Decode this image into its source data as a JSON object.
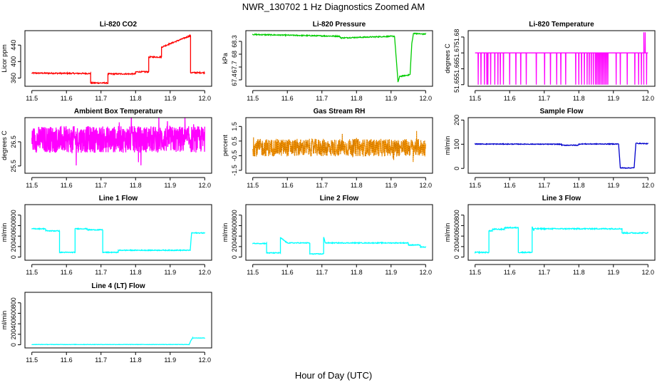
{
  "figure": {
    "title": "NWR_130702  1 Hz Diagnostics Zoomed AM",
    "xlabel": "Hour of Day (UTC)"
  },
  "chart_data": [
    {
      "id": "co2",
      "type": "line",
      "title": "Li-820 CO2",
      "ylabel": "Licor ppm",
      "color": "#ff0000",
      "xlim": [
        11.48,
        12.02
      ],
      "ylim": [
        340,
        475
      ],
      "xticks": [
        11.5,
        11.6,
        11.7,
        11.8,
        11.9,
        12.0
      ],
      "yticks": [
        360,
        400,
        440
      ],
      "x": [
        11.5,
        11.67,
        11.67,
        11.72,
        11.72,
        11.8,
        11.8,
        11.838,
        11.838,
        11.875,
        11.875,
        11.959,
        11.959,
        12.0
      ],
      "y": [
        372,
        371,
        348,
        348,
        370,
        370,
        375,
        375,
        411,
        411,
        435,
        463,
        373,
        373
      ],
      "noise": 1.5
    },
    {
      "id": "pressure",
      "type": "line",
      "title": "Li-820 Pressure",
      "ylabel": "kPa",
      "color": "#00cc00",
      "xlim": [
        11.48,
        12.02
      ],
      "ylim": [
        67.25,
        68.55
      ],
      "xticks": [
        11.5,
        11.6,
        11.7,
        11.8,
        11.9,
        12.0
      ],
      "yticks": [
        67.4,
        67.7,
        68.0,
        68.3
      ],
      "x": [
        11.5,
        11.75,
        11.755,
        11.91,
        11.915,
        11.92,
        11.925,
        11.955,
        11.96,
        11.965,
        11.99,
        12.0
      ],
      "y": [
        68.46,
        68.42,
        68.38,
        68.42,
        67.9,
        67.35,
        67.48,
        67.52,
        68.25,
        68.49,
        68.47,
        68.47
      ],
      "noise": 0.012
    },
    {
      "id": "temperature",
      "type": "line",
      "title": "Li-820 Temperature",
      "ylabel": "degrees C",
      "color": "#ff00ff",
      "xlim": [
        11.48,
        12.02
      ],
      "ylim": [
        51.649,
        51.684
      ],
      "xticks": [
        11.5,
        11.6,
        11.7,
        11.8,
        11.9,
        12.0
      ],
      "yticks": [
        51.65,
        51.66,
        51.67,
        51.68
      ],
      "baseline": 51.67,
      "low": 51.65,
      "spike_x": [
        11.509,
        11.517,
        11.527,
        11.534,
        11.537,
        11.545,
        11.557,
        11.566,
        11.573,
        11.582,
        11.6,
        11.618,
        11.632,
        11.648,
        11.677,
        11.701,
        11.718,
        11.736,
        11.748,
        11.762,
        11.791,
        11.8,
        11.808,
        11.816,
        11.824,
        11.83,
        11.836,
        11.842,
        11.848,
        11.852,
        11.856,
        11.86,
        11.864,
        11.868,
        11.872,
        11.876,
        11.88,
        11.884,
        11.908,
        11.92,
        11.94,
        11.962,
        11.973,
        11.981,
        11.988,
        11.996
      ],
      "high_x": [
        11.988,
        11.992
      ],
      "high": 51.683
    },
    {
      "id": "ambient",
      "type": "line",
      "title": "Ambient Box Temperature",
      "ylabel": "degrees C",
      "color": "#ff00ff",
      "xlim": [
        11.48,
        12.02
      ],
      "ylim": [
        25.2,
        27.5
      ],
      "xticks": [
        11.5,
        11.6,
        11.7,
        11.8,
        11.9,
        12.0
      ],
      "yticks": [
        25.5,
        26.5
      ],
      "center": 26.6,
      "amplitude": 0.55
    },
    {
      "id": "rh",
      "type": "line",
      "title": "Gas Stream RH",
      "ylabel": "percent",
      "color": "#ff9900",
      "xlim": [
        11.48,
        12.02
      ],
      "ylim": [
        -1.7,
        2.1
      ],
      "xticks": [
        11.5,
        11.6,
        11.7,
        11.8,
        11.9,
        12.0
      ],
      "yticks": [
        -1.5,
        -0.5,
        0.5,
        1.5
      ],
      "center": 0.05,
      "amplitude": 0.6
    },
    {
      "id": "sampleflow",
      "type": "line",
      "title": "Sample Flow",
      "ylabel": "ml/min",
      "color": "#0000cc",
      "xlim": [
        11.48,
        12.02
      ],
      "ylim": [
        -20,
        210
      ],
      "xticks": [
        11.5,
        11.6,
        11.7,
        11.8,
        11.9,
        12.0
      ],
      "yticks": [
        0,
        100,
        200
      ],
      "x": [
        11.5,
        11.75,
        11.75,
        11.8,
        11.8,
        11.915,
        11.92,
        11.96,
        11.965,
        12.0
      ],
      "y": [
        101,
        100,
        96,
        96,
        101,
        101,
        2,
        2,
        104,
        102
      ],
      "noise": 1.5
    },
    {
      "id": "line1",
      "type": "line",
      "title": "Line 1 Flow",
      "ylabel": "ml/min",
      "color": "#00ffff",
      "xlim": [
        11.48,
        12.02
      ],
      "ylim": [
        -60,
        1000
      ],
      "xticks": [
        11.5,
        11.6,
        11.7,
        11.8,
        11.9,
        12.0
      ],
      "yticks": [
        0,
        200,
        400,
        600,
        800
      ],
      "x": [
        11.5,
        11.54,
        11.54,
        11.58,
        11.58,
        11.625,
        11.625,
        11.66,
        11.66,
        11.705,
        11.705,
        11.75,
        11.75,
        11.958,
        11.962,
        12.0
      ],
      "y": [
        540,
        540,
        500,
        500,
        90,
        90,
        540,
        540,
        520,
        520,
        90,
        90,
        130,
        130,
        460,
        460
      ],
      "noise": 8
    },
    {
      "id": "line2",
      "type": "line",
      "title": "Line 2 Flow",
      "ylabel": "ml/min",
      "color": "#00ffff",
      "xlim": [
        11.48,
        12.02
      ],
      "ylim": [
        -60,
        1000
      ],
      "xticks": [
        11.5,
        11.6,
        11.7,
        11.8,
        11.9,
        12.0
      ],
      "yticks": [
        0,
        200,
        400,
        600,
        800
      ],
      "x": [
        11.5,
        11.54,
        11.54,
        11.58,
        11.58,
        11.6,
        11.6,
        11.665,
        11.665,
        11.705,
        11.705,
        11.71,
        11.71,
        11.95,
        11.95,
        11.985,
        11.985,
        12.0
      ],
      "y": [
        260,
        260,
        80,
        80,
        370,
        270,
        270,
        270,
        60,
        60,
        380,
        270,
        270,
        270,
        230,
        230,
        190,
        190
      ],
      "noise": 8
    },
    {
      "id": "line3",
      "type": "line",
      "title": "Line 3 Flow",
      "ylabel": "ml/min",
      "color": "#00ffff",
      "xlim": [
        11.48,
        12.02
      ],
      "ylim": [
        -60,
        1000
      ],
      "xticks": [
        11.5,
        11.6,
        11.7,
        11.8,
        11.9,
        12.0
      ],
      "yticks": [
        0,
        200,
        400,
        600,
        800
      ],
      "x": [
        11.5,
        11.54,
        11.54,
        11.55,
        11.55,
        11.585,
        11.585,
        11.625,
        11.625,
        11.665,
        11.665,
        11.67,
        11.67,
        11.925,
        11.925,
        12.0
      ],
      "y": [
        90,
        90,
        500,
        500,
        530,
        530,
        560,
        560,
        90,
        90,
        580,
        500,
        540,
        540,
        460,
        460
      ],
      "noise": 10
    },
    {
      "id": "line4",
      "type": "line",
      "title": "Line 4 (LT) Flow",
      "ylabel": "ml/min",
      "color": "#00ffff",
      "xlim": [
        11.48,
        12.02
      ],
      "ylim": [
        -60,
        1000
      ],
      "xticks": [
        11.5,
        11.6,
        11.7,
        11.8,
        11.9,
        12.0
      ],
      "yticks": [
        0,
        200,
        400,
        600,
        800
      ],
      "x": [
        11.5,
        11.955,
        11.96,
        11.965,
        12.0
      ],
      "y": [
        5,
        5,
        80,
        130,
        130
      ],
      "noise": 3
    }
  ]
}
